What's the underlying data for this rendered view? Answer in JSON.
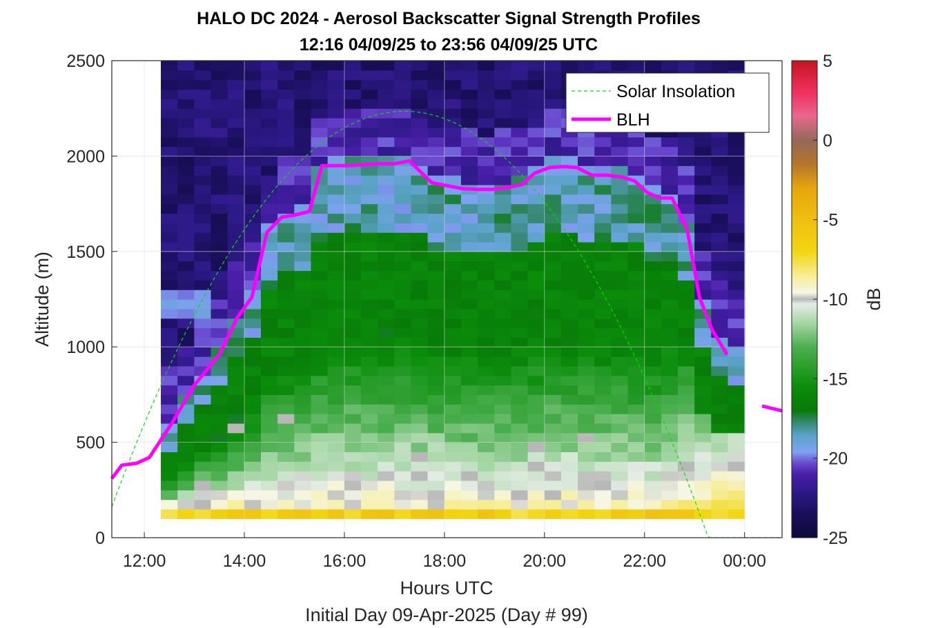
{
  "chart_data": {
    "type": "heatmap",
    "title": "HALO DC 2024 - Aerosol Backscatter Signal Strength Profiles",
    "subtitle": "12:16 04/09/25 to 23:56 04/09/25  UTC",
    "xlabel": "Hours UTC",
    "xlabel2": "Initial Day 09-Apr-2025 (Day # 99)",
    "ylabel": "Altitude (m)",
    "colorbar_label": "dB",
    "xlim": [
      11.35,
      24.75
    ],
    "ylim": [
      0,
      2500
    ],
    "x_ticks": [
      12,
      14,
      16,
      18,
      20,
      22,
      24
    ],
    "x_tick_labels": [
      "12:00",
      "14:00",
      "16:00",
      "18:00",
      "20:00",
      "22:00",
      "00:00"
    ],
    "y_ticks": [
      0,
      500,
      1000,
      1500,
      2000,
      2500
    ],
    "y_tick_labels": [
      "0",
      "500",
      "1000",
      "1500",
      "2000",
      "2500"
    ],
    "clim": [
      -25,
      5
    ],
    "colorbar_ticks": [
      5,
      0,
      -5,
      -10,
      -15,
      -20,
      -25
    ],
    "colorbar_tick_labels": [
      "5",
      "0",
      "-5",
      "-10",
      "-15",
      "-20",
      "-25"
    ],
    "grid": true,
    "legend_position": "top-right",
    "legend": [
      "Solar Insolation",
      "BLH"
    ],
    "heatmap": {
      "time_start": 12.33,
      "time_end": 24.0,
      "time_bins": 35,
      "alt_start": 100,
      "alt_end": 2500,
      "alt_bins": 48,
      "description_profile_layers": "near-surface high dB (yellow), green mixed layer, blue transition, purple free troposphere"
    },
    "series": [
      {
        "name": "BLH",
        "color": "#ff00ff",
        "x": [
          11.35,
          11.55,
          11.85,
          12.1,
          12.55,
          13.0,
          13.5,
          13.85,
          14.15,
          14.45,
          14.75,
          15.0,
          15.3,
          15.55,
          15.8,
          16.1,
          16.4,
          16.7,
          17.0,
          17.3,
          17.55,
          17.75,
          18.05,
          18.35,
          18.65,
          18.95,
          19.25,
          19.55,
          19.8,
          20.1,
          20.4,
          20.65,
          20.95,
          21.25,
          21.55,
          21.8,
          22.05,
          22.3,
          22.55,
          22.85,
          23.1,
          23.35,
          23.65,
          23.95,
          24.25
        ],
        "y": [
          310,
          380,
          390,
          420,
          600,
          800,
          960,
          1150,
          1260,
          1600,
          1680,
          1690,
          1710,
          1950,
          1950,
          1950,
          1955,
          1960,
          1960,
          1975,
          1910,
          1860,
          1845,
          1830,
          1825,
          1825,
          1835,
          1850,
          1910,
          1940,
          1945,
          1940,
          1900,
          1900,
          1890,
          1870,
          1810,
          1780,
          1780,
          1620,
          1260,
          1090,
          960,
          null,
          680
        ],
        "segments": [
          [
            11.35,
            23.95
          ],
          [
            24.35,
            24.75
          ]
        ],
        "segment_values": [
          [
            310,
            960
          ],
          [
            690,
            665
          ]
        ]
      },
      {
        "name": "Solar Insolation",
        "color": "#00e000",
        "style": "dashed",
        "peak_x": 17.2,
        "peak_y": 2235,
        "zero_at": [
          11.2,
          23.35
        ]
      }
    ]
  }
}
